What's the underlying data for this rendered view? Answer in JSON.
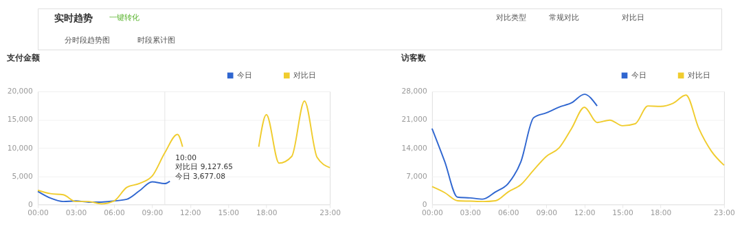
{
  "chart_data": [
    {
      "type": "line",
      "title": "支付金额",
      "annotations": [
        "实时趋势",
        "一键转化",
        "对比类型",
        "常规对比",
        "对比日",
        "分时段趋势图",
        "时段累计图",
        "10:00",
        "对比日  9,127.65",
        "今日  3,677.08"
      ],
      "series": [
        {
          "name": "今日",
          "color": "#2f66d0",
          "x": [
            0,
            1,
            2,
            3,
            4,
            5,
            6,
            7,
            8,
            9,
            10,
            10.4
          ],
          "values": [
            2300,
            1100,
            500,
            600,
            400,
            400,
            600,
            900,
            2400,
            4000,
            3677.08,
            4100
          ]
        },
        {
          "name": "对比日",
          "color": "#f0cc2e",
          "x": [
            0,
            1,
            2,
            3,
            4,
            5,
            6,
            7,
            8,
            9,
            10,
            11,
            11.4,
            14,
            17.4,
            18,
            19,
            20,
            21,
            22,
            23
          ],
          "values": [
            2500,
            1900,
            1700,
            500,
            500,
            100,
            600,
            3000,
            3700,
            5000,
            9127.65,
            12400,
            10200,
            null,
            10200,
            15900,
            7300,
            8500,
            18300,
            8300,
            6500
          ]
        }
      ],
      "xlim": [
        0,
        23
      ],
      "xticks": [
        {
          "value": 0,
          "label": "00:00"
        },
        {
          "value": 3,
          "label": "03:00"
        },
        {
          "value": 6,
          "label": "06:00"
        },
        {
          "value": 9,
          "label": "09:00"
        },
        {
          "value": 12,
          "label": "12:00"
        },
        {
          "value": 15,
          "label": "15:00"
        },
        {
          "value": 18,
          "label": "18:00"
        },
        {
          "value": 23,
          "label": "23:00"
        }
      ],
      "ylim": [
        0,
        20000
      ],
      "yticks": [
        0,
        {
          "value": 5000,
          "label": "5,000"
        },
        {
          "value": 10000,
          "label": "10,000"
        },
        {
          "value": 15000,
          "label": "15,000"
        },
        {
          "value": 20000,
          "label": "20,000"
        }
      ],
      "ref_lines": [
        {
          "axis": "x",
          "value": 10,
          "color": "#e3e3e3"
        }
      ],
      "grid": "y",
      "legend": "top right",
      "line_style": "solid",
      "marker": "none"
    },
    {
      "type": "line",
      "title": "访客数",
      "series": [
        {
          "name": "今日",
          "color": "#2f66d0",
          "x": [
            0,
            1,
            2,
            3,
            4,
            5,
            6,
            7,
            8,
            9,
            10,
            11,
            12,
            13
          ],
          "values": [
            18800,
            10600,
            1800,
            1600,
            1300,
            3100,
            5200,
            10600,
            21500,
            22700,
            24100,
            25200,
            27300,
            24400
          ]
        },
        {
          "name": "对比日",
          "color": "#f0cc2e",
          "x": [
            0,
            1,
            2,
            3,
            4,
            5,
            6,
            7,
            8,
            9,
            10,
            11,
            12,
            13,
            14,
            15,
            16,
            17,
            18,
            19,
            20,
            21,
            22,
            23
          ],
          "values": [
            4400,
            2900,
            900,
            800,
            700,
            900,
            3100,
            4900,
            8500,
            11900,
            14000,
            18900,
            24100,
            20300,
            20900,
            19500,
            20000,
            24400,
            24300,
            25100,
            27100,
            18900,
            13200,
            9700
          ]
        }
      ],
      "xlim": [
        0,
        23
      ],
      "xticks": [
        {
          "value": 0,
          "label": "00:00"
        },
        {
          "value": 3,
          "label": "03:00"
        },
        {
          "value": 6,
          "label": "06:00"
        },
        {
          "value": 9,
          "label": "09:00"
        },
        {
          "value": 12,
          "label": "12:00"
        },
        {
          "value": 15,
          "label": "15:00"
        },
        {
          "value": 18,
          "label": "18:00"
        },
        {
          "value": 23,
          "label": "23:00"
        }
      ],
      "ylim": [
        0,
        28000
      ],
      "yticks": [
        0,
        {
          "value": 7000,
          "label": "7,000"
        },
        {
          "value": 14000,
          "label": "14,000"
        },
        {
          "value": 21000,
          "label": "21,000"
        },
        {
          "value": 28000,
          "label": "28,000"
        }
      ],
      "grid": "y",
      "legend": "top right",
      "line_style": "solid",
      "marker": "none"
    }
  ]
}
